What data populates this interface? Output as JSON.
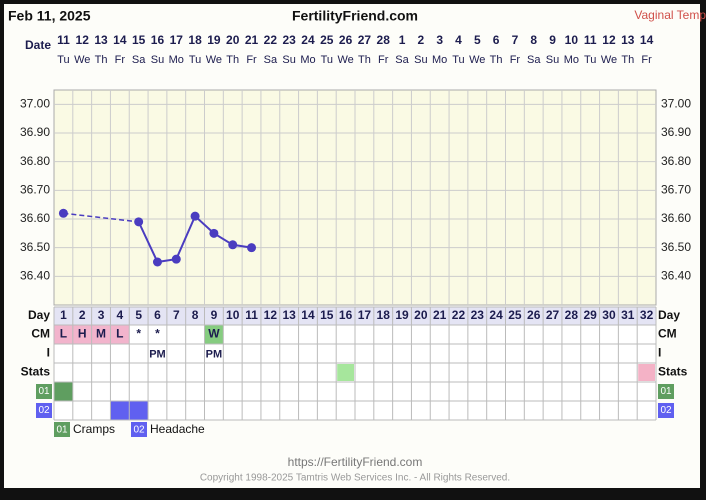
{
  "chart_data": {
    "type": "line",
    "date": "Feb 11, 2025",
    "title": "FertilityFriend.com",
    "temp_type": "Vaginal Temp",
    "date_label": "Date",
    "dates": [
      11,
      12,
      13,
      14,
      15,
      16,
      17,
      18,
      19,
      20,
      21,
      22,
      23,
      24,
      25,
      26,
      27,
      28,
      1,
      2,
      3,
      4,
      5,
      6,
      7,
      8,
      9,
      10,
      11,
      12,
      13,
      14
    ],
    "weekdays": [
      "Tu",
      "We",
      "Th",
      "Fr",
      "Sa",
      "Su",
      "Mo",
      "Tu",
      "We",
      "Th",
      "Fr",
      "Sa",
      "Su",
      "Mo",
      "Tu",
      "We",
      "Th",
      "Fr",
      "Sa",
      "Su",
      "Mo",
      "Tu",
      "We",
      "Th",
      "Fr",
      "Sa",
      "Su",
      "Mo",
      "Tu",
      "We",
      "Th",
      "Fr"
    ],
    "day_label": "Day",
    "days": [
      1,
      2,
      3,
      4,
      5,
      6,
      7,
      8,
      9,
      10,
      11,
      12,
      13,
      14,
      15,
      16,
      17,
      18,
      19,
      20,
      21,
      22,
      23,
      24,
      25,
      26,
      27,
      28,
      29,
      30,
      31,
      32
    ],
    "series": [
      {
        "color": "#4a3cc0",
        "values": [
          36.62,
          null,
          null,
          null,
          36.59,
          36.45,
          36.46,
          36.61,
          36.55,
          36.51,
          36.5,
          null,
          null,
          null,
          null,
          null,
          null,
          null,
          null,
          null,
          null,
          null,
          null,
          null,
          null,
          null,
          null,
          null,
          null,
          null,
          null,
          null
        ]
      }
    ],
    "ylim": [
      36.3,
      37.05
    ],
    "yticks": [
      {
        "value": 36.4,
        "label": "36.40"
      },
      {
        "value": 36.5,
        "label": "36.50"
      },
      {
        "value": 36.6,
        "label": "36.60"
      },
      {
        "value": 36.7,
        "label": "36.70"
      },
      {
        "value": 36.8,
        "label": "36.80"
      },
      {
        "value": 36.9,
        "label": "36.90"
      },
      {
        "value": 37,
        "label": "37.00"
      }
    ],
    "grid": true,
    "cm_label": "CM",
    "cm": [
      "L",
      "H",
      "M",
      "L",
      "*",
      "*",
      null,
      null,
      "W",
      null,
      null,
      null,
      null,
      null,
      null,
      null,
      null,
      null,
      null,
      null,
      null,
      null,
      null,
      null,
      null,
      null,
      null,
      null,
      null,
      null,
      null,
      null
    ],
    "cm_colors": {
      "L": "#f2b4cc",
      "H": "#f2b4cc",
      "M": "#f2b4cc",
      "W": "#86cc80"
    },
    "i_label": "I",
    "i": [
      null,
      null,
      null,
      null,
      null,
      "PM",
      null,
      null,
      "PM",
      null,
      null,
      null,
      null,
      null,
      null,
      null,
      null,
      null,
      null,
      null,
      null,
      null,
      null,
      null,
      null,
      null,
      null,
      null,
      null,
      null,
      null,
      null
    ],
    "stats_label": "Stats",
    "stats": [
      null,
      null,
      null,
      null,
      null,
      null,
      null,
      null,
      null,
      null,
      null,
      null,
      null,
      null,
      null,
      "#a6e69c",
      null,
      null,
      null,
      null,
      null,
      null,
      null,
      null,
      null,
      null,
      null,
      null,
      null,
      null,
      null,
      "#f4b2c6"
    ],
    "symptoms": [
      {
        "code": "01",
        "name": "Cramps",
        "color": "#5f9e60",
        "days": [
          1
        ]
      },
      {
        "code": "02",
        "name": "Headache",
        "color": "#6060f0",
        "days": [
          4,
          5
        ]
      }
    ],
    "footer_url": "https://FertilityFriend.com",
    "copyright": "Copyright 1998-2025 Tamtris Web Services Inc. - All Rights Reserved."
  }
}
